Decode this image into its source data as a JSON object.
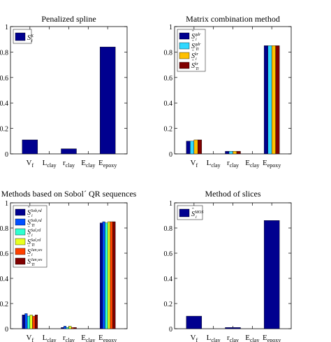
{
  "chart_data": [
    {
      "type": "bar",
      "title": "Penalized spline",
      "categories": [
        {
          "base": "V",
          "sub": "f"
        },
        {
          "base": "L",
          "sub": "clay"
        },
        {
          "base": "r",
          "sub": "clay"
        },
        {
          "base": "E",
          "sub": "clay"
        },
        {
          "base": "E",
          "sub": "epoxy"
        }
      ],
      "ylim": [
        0,
        1
      ],
      "yticks": [
        "0",
        "0.2",
        "0.4",
        "0.6",
        "0.8",
        "1"
      ],
      "legend_position": "top-left",
      "series": [
        {
          "name": "S_i^K",
          "label": {
            "base": "S",
            "hat": false,
            "sup": "K",
            "sub": "i"
          },
          "color": "#00008f",
          "values": [
            0.11,
            0.0,
            0.04,
            0.0,
            0.84
          ]
        }
      ]
    },
    {
      "type": "bar",
      "title": "Matrix combination method",
      "categories": [
        {
          "base": "V",
          "sub": "f"
        },
        {
          "base": "L",
          "sub": "clay"
        },
        {
          "base": "r",
          "sub": "clay"
        },
        {
          "base": "E",
          "sub": "clay"
        },
        {
          "base": "E",
          "sub": "epoxy"
        }
      ],
      "ylim": [
        0,
        1
      ],
      "yticks": [
        "0",
        "0.2",
        "0.4",
        "0.6",
        "0.8",
        "1"
      ],
      "legend_position": "top-left",
      "series": [
        {
          "name": "Ŝ_i^qdr",
          "label": {
            "base": "S",
            "hat": true,
            "sup": "qdr",
            "sub": "i"
          },
          "color": "#00008f",
          "values": [
            0.1,
            0.0,
            0.02,
            0.0,
            0.85
          ]
        },
        {
          "name": "Ŝ_Ti^qdr",
          "label": {
            "base": "S",
            "hat": true,
            "sup": "qdr",
            "sub": "Ti"
          },
          "color": "#30d8ff",
          "values": [
            0.1,
            0.0,
            0.02,
            0.0,
            0.85
          ]
        },
        {
          "name": "Ŝ_i^kr",
          "label": {
            "base": "S",
            "hat": true,
            "sup": "kr",
            "sub": "i"
          },
          "color": "#ffc000",
          "values": [
            0.11,
            0.0,
            0.02,
            0.0,
            0.85
          ]
        },
        {
          "name": "Ŝ_Ti^kr",
          "label": {
            "base": "S",
            "hat": true,
            "sup": "kr",
            "sub": "Ti"
          },
          "color": "#800000",
          "values": [
            0.11,
            0.0,
            0.02,
            0.0,
            0.85
          ]
        }
      ]
    },
    {
      "type": "bar",
      "title": "Methods based on Sobol´ QR sequences",
      "categories": [
        {
          "base": "V",
          "sub": "f"
        },
        {
          "base": "L",
          "sub": "clay"
        },
        {
          "base": "r",
          "sub": "clay"
        },
        {
          "base": "E",
          "sub": "clay"
        },
        {
          "base": "E",
          "sub": "epoxy"
        }
      ],
      "ylim": [
        0,
        1
      ],
      "yticks": [
        "0",
        "0.2",
        "0.4",
        "0.6",
        "0.8",
        "1"
      ],
      "legend_position": "top-left",
      "series": [
        {
          "name": "Ŝ_i^Sob,rd",
          "label": {
            "base": "S",
            "hat": true,
            "sup": "Sob,rd",
            "sub": "i"
          },
          "color": "#00008f",
          "values": [
            0.11,
            0.0,
            0.01,
            0.0,
            0.84
          ]
        },
        {
          "name": "Ŝ_Ti^Sob,rd",
          "label": {
            "base": "S",
            "hat": true,
            "sup": "Sob,rd",
            "sub": "Ti"
          },
          "color": "#0050ff",
          "values": [
            0.12,
            0.0,
            0.02,
            0.0,
            0.85
          ]
        },
        {
          "name": "Ŝ_i^Sal,rd",
          "label": {
            "base": "S",
            "hat": true,
            "sup": "Sal,rd",
            "sub": "i"
          },
          "color": "#30ffd0",
          "values": [
            0.1,
            0.0,
            0.01,
            0.0,
            0.84
          ]
        },
        {
          "name": "Ŝ_Ti^Sal,rd",
          "label": {
            "base": "S",
            "hat": true,
            "sup": "Sal,rd",
            "sub": "Ti"
          },
          "color": "#e8ff20",
          "values": [
            0.11,
            0.0,
            0.02,
            0.0,
            0.85
          ]
        },
        {
          "name": "Ŝ_i^Jan,ws",
          "label": {
            "base": "S",
            "hat": true,
            "sup": "Jan,ws",
            "sub": "i"
          },
          "color": "#ff4000",
          "values": [
            0.1,
            0.0,
            0.01,
            0.0,
            0.85
          ]
        },
        {
          "name": "Ŝ_Ti^Jan,ws",
          "label": {
            "base": "S",
            "hat": true,
            "sup": "Jan,ws",
            "sub": "Ti"
          },
          "color": "#800000",
          "values": [
            0.11,
            0.0,
            0.01,
            0.0,
            0.85
          ]
        }
      ]
    },
    {
      "type": "bar",
      "title": "Method of slices",
      "categories": [
        {
          "base": "V",
          "sub": "f"
        },
        {
          "base": "L",
          "sub": "clay"
        },
        {
          "base": "r",
          "sub": "clay"
        },
        {
          "base": "E",
          "sub": "clay"
        },
        {
          "base": "E",
          "sub": "epoxy"
        }
      ],
      "ylim": [
        0,
        1
      ],
      "yticks": [
        "0",
        "0.2",
        "0.4",
        "0.6",
        "0.8",
        "1"
      ],
      "legend_position": "top-left",
      "series": [
        {
          "name": "Ŝ_i^MOS",
          "label": {
            "base": "S",
            "hat": true,
            "sup": "MOS",
            "sub": "i"
          },
          "color": "#00008f",
          "values": [
            0.1,
            0.0,
            0.01,
            0.0,
            0.86
          ]
        }
      ]
    }
  ]
}
